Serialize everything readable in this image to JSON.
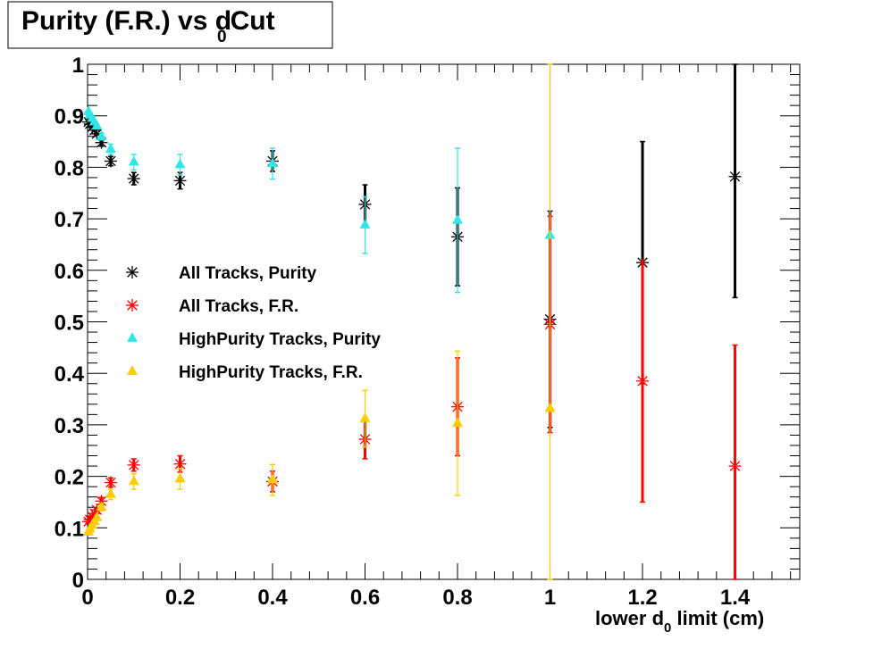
{
  "chart_data": {
    "type": "scatter",
    "title": "Purity (F.R.) vs d",
    "title_sub": "0",
    "title_suffix": "Cut",
    "xlabel_prefix": "lower d",
    "xlabel_sub": "0",
    "xlabel_suffix": " limit (cm)",
    "ylabel": "",
    "xlim": [
      0,
      1.54
    ],
    "ylim": [
      0,
      1
    ],
    "xticks": [
      "0",
      "0.2",
      "0.4",
      "0.6",
      "0.8",
      "1",
      "1.2",
      "1.4"
    ],
    "yticks": [
      "0",
      "0.1",
      "0.2",
      "0.3",
      "0.4",
      "0.5",
      "0.6",
      "0.7",
      "0.8",
      "0.9",
      "1"
    ],
    "grid": false,
    "legend_position": "middle-left",
    "series": [
      {
        "name": "All Tracks, Purity",
        "color": "#000000",
        "marker": "star",
        "points": [
          {
            "x": 0.002,
            "y": 0.888,
            "err": 0.005
          },
          {
            "x": 0.005,
            "y": 0.884,
            "err": 0.005
          },
          {
            "x": 0.01,
            "y": 0.878,
            "err": 0.005
          },
          {
            "x": 0.015,
            "y": 0.872,
            "err": 0.005
          },
          {
            "x": 0.02,
            "y": 0.865,
            "err": 0.006
          },
          {
            "x": 0.03,
            "y": 0.848,
            "err": 0.007
          },
          {
            "x": 0.05,
            "y": 0.812,
            "err": 0.009
          },
          {
            "x": 0.1,
            "y": 0.778,
            "err": 0.012
          },
          {
            "x": 0.2,
            "y": 0.774,
            "err": 0.016
          },
          {
            "x": 0.4,
            "y": 0.812,
            "err": 0.02
          },
          {
            "x": 0.6,
            "y": 0.728,
            "err": 0.038
          },
          {
            "x": 0.8,
            "y": 0.665,
            "err": 0.095
          },
          {
            "x": 1.0,
            "y": 0.505,
            "err": 0.21
          },
          {
            "x": 1.2,
            "y": 0.615,
            "err": 0.235
          },
          {
            "x": 1.4,
            "y": 0.782,
            "err": 0.235
          }
        ]
      },
      {
        "name": "All Tracks, F.R.",
        "color": "#ff0000",
        "marker": "star",
        "points": [
          {
            "x": 0.002,
            "y": 0.112,
            "err": 0.005
          },
          {
            "x": 0.005,
            "y": 0.116,
            "err": 0.005
          },
          {
            "x": 0.01,
            "y": 0.122,
            "err": 0.005
          },
          {
            "x": 0.015,
            "y": 0.128,
            "err": 0.005
          },
          {
            "x": 0.02,
            "y": 0.135,
            "err": 0.006
          },
          {
            "x": 0.03,
            "y": 0.152,
            "err": 0.007
          },
          {
            "x": 0.05,
            "y": 0.188,
            "err": 0.009
          },
          {
            "x": 0.1,
            "y": 0.222,
            "err": 0.012
          },
          {
            "x": 0.2,
            "y": 0.224,
            "err": 0.016
          },
          {
            "x": 0.4,
            "y": 0.19,
            "err": 0.02
          },
          {
            "x": 0.6,
            "y": 0.272,
            "err": 0.038
          },
          {
            "x": 0.8,
            "y": 0.335,
            "err": 0.095
          },
          {
            "x": 1.0,
            "y": 0.495,
            "err": 0.21
          },
          {
            "x": 1.2,
            "y": 0.385,
            "err": 0.235
          },
          {
            "x": 1.4,
            "y": 0.22,
            "err": 0.235
          }
        ]
      },
      {
        "name": "HighPurity Tracks, Purity",
        "color": "#33e6e6",
        "marker": "triangle",
        "points": [
          {
            "x": 0.002,
            "y": 0.908,
            "err": 0.005
          },
          {
            "x": 0.005,
            "y": 0.902,
            "err": 0.005
          },
          {
            "x": 0.01,
            "y": 0.895,
            "err": 0.005
          },
          {
            "x": 0.015,
            "y": 0.888,
            "err": 0.005
          },
          {
            "x": 0.02,
            "y": 0.88,
            "err": 0.006
          },
          {
            "x": 0.03,
            "y": 0.86,
            "err": 0.007
          },
          {
            "x": 0.05,
            "y": 0.835,
            "err": 0.01
          },
          {
            "x": 0.1,
            "y": 0.81,
            "err": 0.015
          },
          {
            "x": 0.2,
            "y": 0.805,
            "err": 0.02
          },
          {
            "x": 0.4,
            "y": 0.807,
            "err": 0.03
          },
          {
            "x": 0.6,
            "y": 0.688,
            "err": 0.055
          },
          {
            "x": 0.8,
            "y": 0.697,
            "err": 0.14
          },
          {
            "x": 1.0,
            "y": 0.668,
            "err": 0.34
          }
        ]
      },
      {
        "name": "HighPurity Tracks, F.R.",
        "color": "#ffcc00",
        "marker": "triangle",
        "points": [
          {
            "x": 0.002,
            "y": 0.092,
            "err": 0.005
          },
          {
            "x": 0.005,
            "y": 0.098,
            "err": 0.005
          },
          {
            "x": 0.01,
            "y": 0.105,
            "err": 0.005
          },
          {
            "x": 0.015,
            "y": 0.112,
            "err": 0.005
          },
          {
            "x": 0.02,
            "y": 0.12,
            "err": 0.006
          },
          {
            "x": 0.03,
            "y": 0.14,
            "err": 0.007
          },
          {
            "x": 0.05,
            "y": 0.165,
            "err": 0.01
          },
          {
            "x": 0.1,
            "y": 0.19,
            "err": 0.015
          },
          {
            "x": 0.2,
            "y": 0.195,
            "err": 0.02
          },
          {
            "x": 0.4,
            "y": 0.193,
            "err": 0.03
          },
          {
            "x": 0.6,
            "y": 0.312,
            "err": 0.055
          },
          {
            "x": 0.8,
            "y": 0.303,
            "err": 0.14
          },
          {
            "x": 1.0,
            "y": 0.332,
            "err": 0.7
          }
        ]
      }
    ]
  }
}
